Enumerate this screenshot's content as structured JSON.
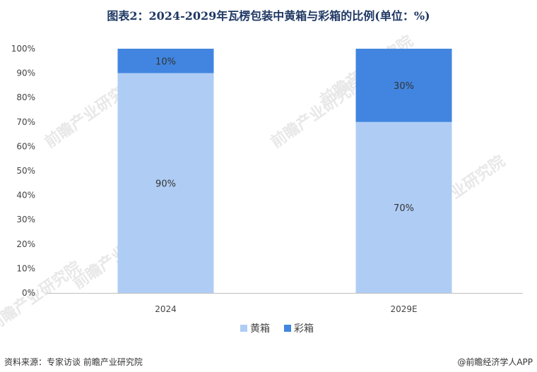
{
  "header": {
    "title": "图表2：2024-2029年瓦楞包装中黄箱与彩箱的比例(单位：%)"
  },
  "chart_data": {
    "type": "bar",
    "stacked": true,
    "categories": [
      "2024",
      "2029E"
    ],
    "series": [
      {
        "name": "黄箱",
        "values": [
          90,
          70
        ],
        "labels": [
          "90%",
          "70%"
        ],
        "color": "#afcdf4"
      },
      {
        "name": "彩箱",
        "values": [
          10,
          30
        ],
        "labels": [
          "10%",
          "30%"
        ],
        "color": "#4185e0"
      }
    ],
    "ylim": [
      0,
      100
    ],
    "yticks": [
      "0%",
      "10%",
      "20%",
      "30%",
      "40%",
      "50%",
      "60%",
      "70%",
      "80%",
      "90%",
      "100%"
    ],
    "grid": false,
    "legend_position": "bottom"
  },
  "footer": {
    "source": "资料来源：专家访谈 前瞻产业研究院",
    "brand": "@前瞻经济学人APP"
  },
  "watermark": {
    "text": "前瞻产业研究院"
  }
}
